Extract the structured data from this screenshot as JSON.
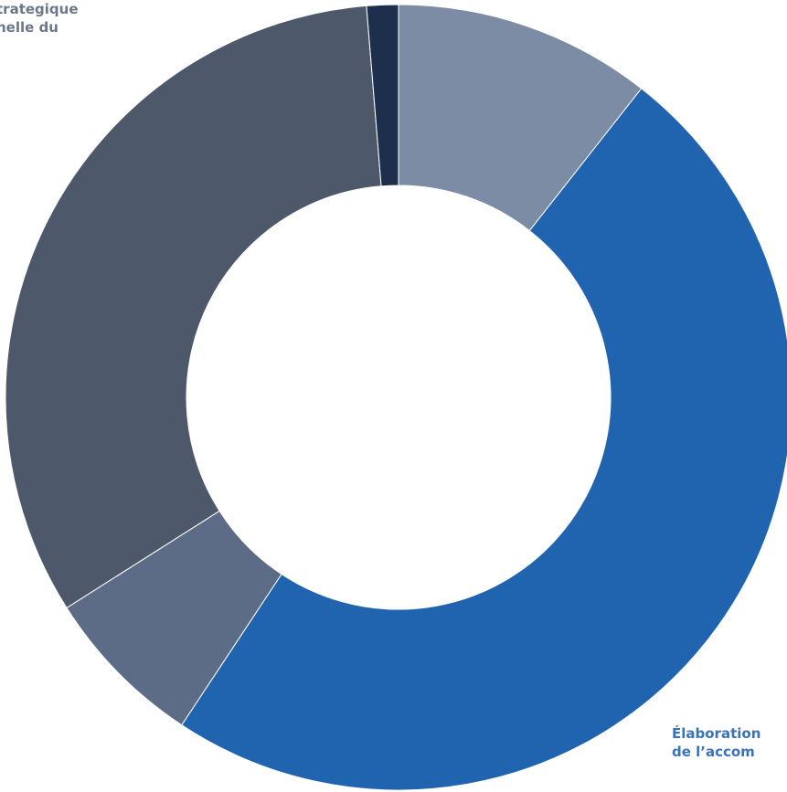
{
  "chart_data": {
    "type": "pie",
    "donut": true,
    "title": "",
    "slices": [
      {
        "value": 10.6,
        "color": "#7d8ca5"
      },
      {
        "value": 48.7,
        "color": "#2064af"
      },
      {
        "value": 6.7,
        "color": "#5d6c86"
      },
      {
        "value": 32.7,
        "color": "#4d596b"
      },
      {
        "value": 1.3,
        "color": "#1e2f4e"
      }
    ],
    "annotations": [
      {
        "lines": [
          "trategique",
          "nelle du"
        ]
      },
      {
        "lines": [
          "Élaboration",
          "de l’accom"
        ]
      }
    ]
  }
}
